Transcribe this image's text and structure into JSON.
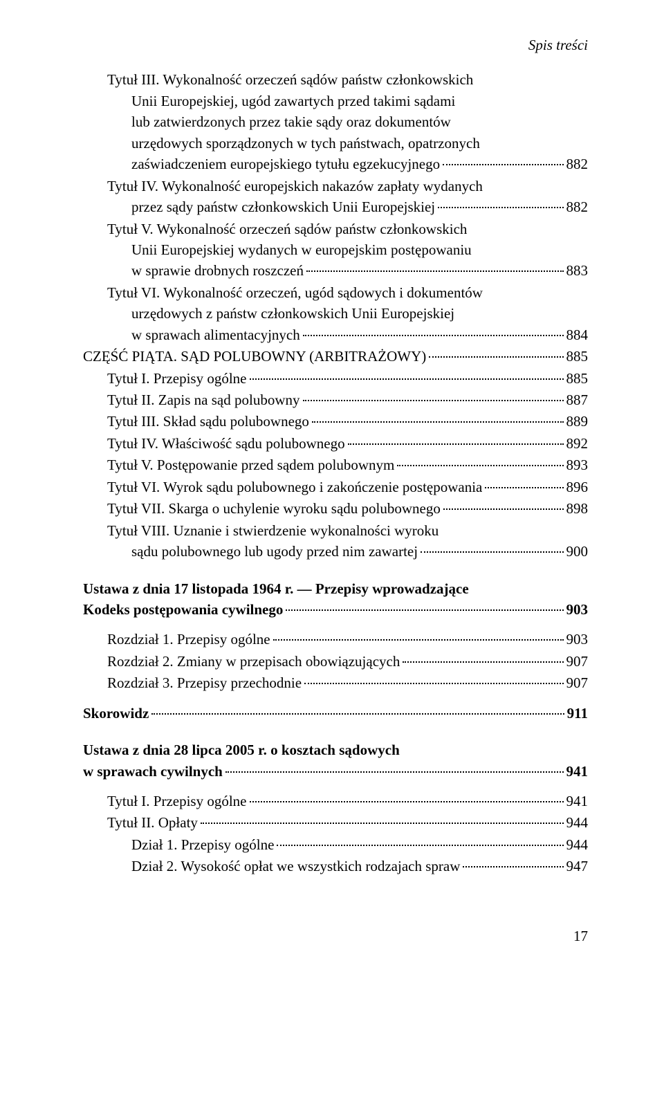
{
  "header": "Spis treści",
  "footer_page": "17",
  "entries": [
    {
      "kind": "multi",
      "indent": 1,
      "lines": [
        "Tytuł III. Wykonalność orzeczeń sądów państw członkowskich",
        "Unii Europejskiej, ugód zawartych przed takimi sądami",
        "lub zatwierdzonych przez takie sądy oraz dokumentów",
        "urzędowych sporządzonych w tych państwach, opatrzonych"
      ],
      "last": "zaświadczeniem europejskiego tytułu egzekucyjnego",
      "page": "882"
    },
    {
      "kind": "multi",
      "indent": 1,
      "lines": [
        "Tytuł IV. Wykonalność europejskich nakazów zapłaty wydanych"
      ],
      "last": "przez sądy państw członkowskich Unii Europejskiej",
      "page": "882"
    },
    {
      "kind": "multi",
      "indent": 1,
      "lines": [
        "Tytuł V. Wykonalność orzeczeń sądów państw członkowskich",
        "Unii Europejskiej wydanych w europejskim postępowaniu"
      ],
      "last": "w sprawie drobnych roszczeń",
      "page": "883"
    },
    {
      "kind": "multi",
      "indent": 1,
      "lines": [
        "Tytuł VI. Wykonalność orzeczeń, ugód sądowych i dokumentów",
        "urzędowych z państw członkowskich Unii Europejskiej"
      ],
      "last": "w sprawach alimentacyjnych",
      "page": "884"
    },
    {
      "kind": "simple",
      "indent": 0,
      "label": "CZĘŚĆ PIĄTA. SĄD POLUBOWNY (ARBITRAŻOWY)",
      "page": "885"
    },
    {
      "kind": "simple",
      "indent": 1,
      "label": "Tytuł I. Przepisy ogólne",
      "page": "885"
    },
    {
      "kind": "simple",
      "indent": 1,
      "label": "Tytuł II. Zapis na sąd polubowny",
      "page": "887"
    },
    {
      "kind": "simple",
      "indent": 1,
      "label": "Tytuł III. Skład sądu polubownego",
      "page": "889"
    },
    {
      "kind": "simple",
      "indent": 1,
      "label": "Tytuł IV. Właściwość sądu polubownego",
      "page": "892"
    },
    {
      "kind": "simple",
      "indent": 1,
      "label": "Tytuł V. Postępowanie przed sądem polubownym",
      "page": "893"
    },
    {
      "kind": "simple",
      "indent": 1,
      "label": "Tytuł VI. Wyrok sądu polubownego i zakończenie postępowania",
      "page": "896"
    },
    {
      "kind": "simple",
      "indent": 1,
      "label": "Tytuł VII. Skarga o uchylenie wyroku sądu polubownego",
      "page": "898"
    },
    {
      "kind": "multi",
      "indent": 1,
      "lines": [
        "Tytuł VIII. Uznanie i stwierdzenie wykonalności wyroku"
      ],
      "last": "sądu polubownego lub ugody przed nim zawartej",
      "page": "900"
    },
    {
      "kind": "gap"
    },
    {
      "kind": "multi-bold",
      "indent": 0,
      "lines": [
        "Ustawa z dnia 17 listopada 1964 r. — Przepisy wprowadzające"
      ],
      "last": "Kodeks postępowania cywilnego",
      "page": " 903"
    },
    {
      "kind": "gap-sm"
    },
    {
      "kind": "simple",
      "indent": 1,
      "label": "Rozdział 1. Przepisy ogólne",
      "page": "903"
    },
    {
      "kind": "simple",
      "indent": 1,
      "label": "Rozdział 2. Zmiany w przepisach obowiązujących",
      "page": "907"
    },
    {
      "kind": "simple",
      "indent": 1,
      "label": "Rozdział 3. Przepisy przechodnie",
      "page": "907"
    },
    {
      "kind": "gap-sm"
    },
    {
      "kind": "simple-bold",
      "indent": 0,
      "label": "Skorowidz",
      "page": "911"
    },
    {
      "kind": "gap"
    },
    {
      "kind": "multi-bold",
      "indent": 0,
      "lines": [
        "Ustawa z dnia 28 lipca 2005 r. o kosztach sądowych"
      ],
      "last": "w sprawach cywilnych",
      "page": " 941"
    },
    {
      "kind": "gap-sm"
    },
    {
      "kind": "simple",
      "indent": 1,
      "label": "Tytuł I. Przepisy ogólne",
      "page": "941"
    },
    {
      "kind": "simple",
      "indent": 1,
      "label": "Tytuł II. Opłaty",
      "page": "944"
    },
    {
      "kind": "simple",
      "indent": 2,
      "label": "Dział 1. Przepisy ogólne",
      "page": "944"
    },
    {
      "kind": "simple",
      "indent": 2,
      "label": "Dział 2. Wysokość opłat we wszystkich rodzajach spraw",
      "page": "947"
    }
  ]
}
